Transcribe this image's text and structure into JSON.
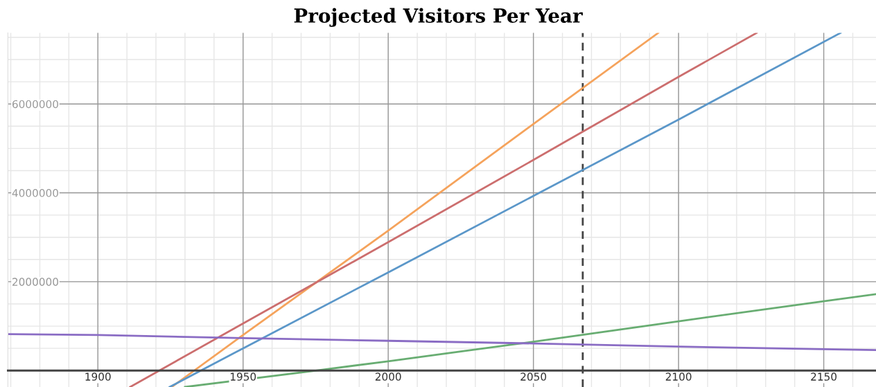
{
  "chart_data": {
    "type": "line",
    "title": "Projected Visitors Per Year",
    "xlim": [
      1869,
      2168
    ],
    "ylim": [
      -370000,
      7600000
    ],
    "xticks": [
      1900,
      1950,
      2000,
      2050,
      2100,
      2150
    ],
    "yticks": [
      2000000,
      4000000,
      6000000
    ],
    "grid": true,
    "marker": "none",
    "line_style": "solid",
    "series": [
      {
        "color": "#f5a35c",
        "x": [
          1925.4,
          1950,
          2000,
          2050,
          2093
        ],
        "values": [
          -370000,
          800000,
          3150000,
          5550000,
          7600000
        ]
      },
      {
        "color": "#cc6e6e",
        "x": [
          1911.1,
          1950,
          2000,
          2050,
          2100,
          2126.9
        ],
        "values": [
          -370000,
          1060000,
          2890000,
          4740000,
          6610000,
          7600000
        ]
      },
      {
        "color": "#5b97c9",
        "x": [
          1924.7,
          1950,
          2000,
          2050,
          2100,
          2155.8
        ],
        "values": [
          -370000,
          500000,
          2210000,
          3930000,
          5650000,
          7600000
        ]
      },
      {
        "color": "#68ad72",
        "x": [
          1930,
          1975,
          2000,
          2050,
          2100,
          2150,
          2168
        ],
        "values": [
          -370000,
          0,
          210000,
          650000,
          1110000,
          1560000,
          1720000
        ]
      },
      {
        "color": "#8a6cc4",
        "x": [
          1869,
          1900,
          1950,
          2000,
          2050,
          2100,
          2150,
          2168
        ],
        "values": [
          820000,
          800000,
          730000,
          670000,
          610000,
          540000,
          480000,
          460000
        ]
      }
    ],
    "ref_lines": [
      {
        "axis": "x",
        "value": 2067,
        "color": "#444444",
        "line_style": "dashed"
      }
    ]
  }
}
